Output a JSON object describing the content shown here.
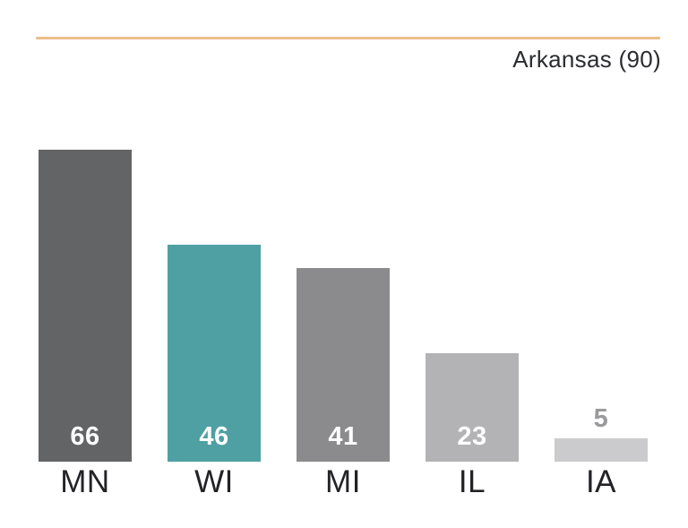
{
  "header": {
    "title": "Arkansas (90)",
    "rule_color": "#ecbe8b",
    "title_color": "#2b2c30"
  },
  "chart_data": {
    "type": "bar",
    "title": "Arkansas (90)",
    "categories": [
      "MN",
      "WI",
      "MI",
      "IL",
      "IA"
    ],
    "values": [
      66,
      46,
      41,
      23,
      5
    ],
    "bar_colors": [
      "#636466",
      "#4fa0a3",
      "#8b8b8d",
      "#b3b3b5",
      "#cbcbcd"
    ],
    "value_label_colors": [
      "#ffffff",
      "#ffffff",
      "#ffffff",
      "#ffffff",
      "#9a9a9c"
    ],
    "value_label_placement": [
      "inside",
      "inside",
      "inside",
      "inside",
      "above"
    ],
    "category_label_color": "#232327",
    "xlabel": "",
    "ylabel": "",
    "ylim": [
      0,
      90
    ],
    "grid": false,
    "legend": false,
    "orientation": "vertical"
  }
}
